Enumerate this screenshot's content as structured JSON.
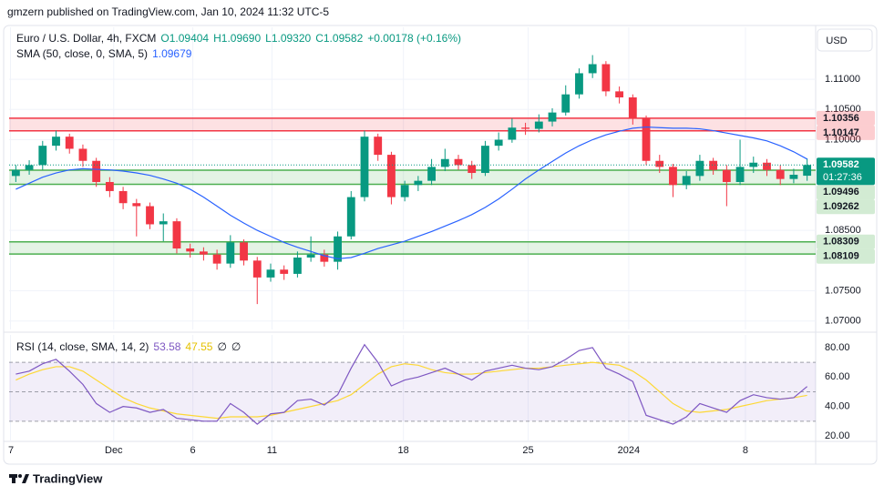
{
  "header": {
    "text": "gmzern published on TradingView.com, Jan 10, 2024 11:32 UTC-5"
  },
  "footer": {
    "brand": "TradingView"
  },
  "chart_data": [
    {
      "type": "candlestick",
      "title": "Euro / U.S. Dollar, 4h, FXCM",
      "ohlc_text": [
        "O1.09404",
        "H1.09690",
        "L1.09320",
        "C1.09582"
      ],
      "change_text": "+0.00178 (+0.16%)",
      "currency": "USD",
      "up_color": "#089981",
      "down_color": "#f23645",
      "xlim": [
        -0.5,
        59.5
      ],
      "ylim": [
        1.0686,
        1.1186
      ],
      "yticks": [
        {
          "value": 1.11,
          "label": "1.11000"
        },
        {
          "value": 1.105,
          "label": "1.10500"
        },
        {
          "value": 1.1,
          "label": "1.10000"
        },
        {
          "value": 1.085,
          "label": "1.08500"
        },
        {
          "value": 1.075,
          "label": "1.07500"
        },
        {
          "value": 1.07,
          "label": "1.07000"
        }
      ],
      "grid": true,
      "open": [
        1.094,
        1.095,
        1.0958,
        1.099,
        1.1005,
        1.0985,
        1.0965,
        1.093,
        1.0915,
        1.0895,
        1.089,
        1.086,
        1.0865,
        1.082,
        1.0815,
        1.081,
        1.0795,
        1.083,
        1.08,
        1.0772,
        1.0785,
        1.0778,
        1.0805,
        1.081,
        1.0798,
        1.084,
        1.0905,
        1.1005,
        1.0975,
        1.0905,
        1.0925,
        1.0932,
        1.0955,
        1.0968,
        1.0958,
        1.0945,
        1.099,
        1.1,
        1.102,
        1.1018,
        1.103,
        1.1045,
        1.1075,
        1.111,
        1.1125,
        1.108,
        1.107,
        1.1035,
        1.0965,
        1.0955,
        1.0925,
        1.094,
        1.0965,
        1.095,
        1.093,
        1.0955,
        1.0962,
        1.095,
        1.0935,
        1.09404
      ],
      "high": [
        1.0958,
        1.0966,
        1.0998,
        1.1015,
        1.101,
        1.0992,
        1.097,
        1.0938,
        1.0922,
        1.0902,
        1.0896,
        1.0878,
        1.087,
        1.0828,
        1.0822,
        1.0818,
        1.0842,
        1.0835,
        1.0806,
        1.0795,
        1.0792,
        1.0815,
        1.084,
        1.0818,
        1.0848,
        1.0915,
        1.1015,
        1.101,
        1.098,
        1.0932,
        1.094,
        1.0968,
        1.0985,
        1.0975,
        1.0965,
        1.0998,
        1.1012,
        1.1035,
        1.1028,
        1.1042,
        1.1052,
        1.109,
        1.1118,
        1.114,
        1.113,
        1.1088,
        1.1075,
        1.104,
        1.0975,
        1.096,
        1.0948,
        1.0975,
        1.097,
        1.0958,
        1.1,
        1.0972,
        1.0968,
        1.0958,
        1.0952,
        1.0969
      ],
      "low": [
        1.093,
        1.0942,
        1.095,
        1.0982,
        1.0977,
        1.0955,
        1.0922,
        1.0905,
        1.0885,
        1.084,
        1.0852,
        1.0832,
        1.0812,
        1.0805,
        1.08,
        1.0785,
        1.0788,
        1.0792,
        1.0728,
        1.0765,
        1.0768,
        1.0772,
        1.0798,
        1.079,
        1.0785,
        1.0835,
        1.0898,
        1.0965,
        1.0893,
        1.0898,
        1.0915,
        1.0925,
        1.0948,
        1.095,
        1.0935,
        1.094,
        1.0982,
        1.0995,
        1.1008,
        1.1012,
        1.1022,
        1.104,
        1.1068,
        1.1102,
        1.1072,
        1.106,
        1.1025,
        1.0958,
        1.0945,
        1.0905,
        1.0918,
        1.0932,
        1.0942,
        1.089,
        1.0925,
        1.0945,
        1.094,
        1.0925,
        1.0928,
        1.0932
      ],
      "close": [
        1.095,
        1.0958,
        1.099,
        1.1005,
        1.0985,
        1.0965,
        1.093,
        1.0915,
        1.0895,
        1.089,
        1.086,
        1.0865,
        1.082,
        1.0815,
        1.081,
        1.0795,
        1.083,
        1.08,
        1.0772,
        1.0785,
        1.0778,
        1.0805,
        1.081,
        1.0798,
        1.084,
        1.0905,
        1.1005,
        1.0975,
        1.0905,
        1.0925,
        1.0932,
        1.0955,
        1.0968,
        1.0958,
        1.0945,
        1.099,
        1.1,
        1.102,
        1.1018,
        1.103,
        1.1045,
        1.1075,
        1.111,
        1.1125,
        1.108,
        1.107,
        1.1035,
        1.0965,
        1.0955,
        1.0925,
        1.094,
        1.0965,
        1.095,
        1.093,
        1.0955,
        1.0962,
        1.095,
        1.0935,
        1.0942,
        1.09582
      ],
      "overlays": [
        {
          "name": "SMA (50, close, 0, SMA, 5)",
          "color": "#2962ff",
          "values": [
            1.0918,
            1.0928,
            1.0938,
            1.0945,
            1.095,
            1.0952,
            1.0951,
            1.095,
            1.0948,
            1.0945,
            1.0941,
            1.0935,
            1.0928,
            1.0918,
            1.0905,
            1.089,
            1.0875,
            1.0862,
            1.085,
            1.084,
            1.083,
            1.0822,
            1.0815,
            1.0808,
            1.0803,
            1.0805,
            1.0812,
            1.082,
            1.0826,
            1.0832,
            1.084,
            1.0848,
            1.0857,
            1.0866,
            1.0876,
            1.0888,
            1.0902,
            1.0918,
            1.0935,
            1.095,
            1.0964,
            1.0978,
            1.099,
            1.1,
            1.1008,
            1.1014,
            1.1019,
            1.1021,
            1.102,
            1.1019,
            1.1019,
            1.1018,
            1.1015,
            1.1011,
            1.1007,
            1.1003,
            1.0998,
            1.099,
            1.098,
            1.09679
          ]
        }
      ],
      "zones": [
        {
          "from": 1.10356,
          "to": 1.10147,
          "color": "#f23645"
        },
        {
          "from": 1.09496,
          "to": 1.09262,
          "color": "#4caf50"
        },
        {
          "from": 1.08309,
          "to": 1.08109,
          "color": "#4caf50"
        }
      ],
      "last": 1.09582,
      "countdown": "01:27:36"
    },
    {
      "type": "line",
      "title": "RSI (14, close, SMA, 14, 2)",
      "extra_labels": [
        "∅",
        "∅"
      ],
      "xlim": [
        -0.5,
        59.5
      ],
      "ylim": [
        16.3,
        88.6
      ],
      "yticks": [
        {
          "value": 80,
          "label": "80.00"
        },
        {
          "value": 60,
          "label": "60.00"
        },
        {
          "value": 40,
          "label": "40.00"
        },
        {
          "value": 20,
          "label": "20.00"
        }
      ],
      "xticks": [
        {
          "value": -0.4,
          "label": "7"
        },
        {
          "value": 7.3,
          "label": "Dec"
        },
        {
          "value": 13.2,
          "label": "6"
        },
        {
          "value": 19.1,
          "label": "11"
        },
        {
          "value": 28.9,
          "label": "18"
        },
        {
          "value": 38.2,
          "label": "25"
        },
        {
          "value": 45.7,
          "label": "2024"
        },
        {
          "value": 54.4,
          "label": "8"
        }
      ],
      "levels": [
        70,
        50,
        30
      ],
      "band_color": "#7e57c2",
      "series": [
        {
          "color": "#7e57c2",
          "values": [
            62,
            64,
            69,
            72,
            64,
            55,
            42,
            36,
            40,
            39,
            36,
            38,
            32,
            31,
            30,
            30,
            42,
            36,
            28,
            35,
            36,
            44,
            45,
            41,
            48,
            66,
            82,
            70,
            54,
            58,
            60,
            63,
            66,
            62,
            58,
            64,
            66,
            68,
            66,
            65,
            67,
            72,
            78,
            80,
            66,
            62,
            57,
            34,
            31,
            28,
            33,
            42,
            39,
            36,
            44,
            48,
            46,
            45,
            46,
            53.58
          ]
        },
        {
          "color": "#fdd835",
          "values": [
            58,
            62,
            65,
            67,
            67,
            64,
            58,
            52,
            46,
            42,
            39,
            37,
            35,
            34,
            33,
            32,
            33,
            33,
            33,
            34,
            36,
            38,
            40,
            42,
            44,
            48,
            55,
            62,
            67,
            69,
            68,
            65,
            63,
            62,
            62,
            63,
            64,
            65,
            66,
            66,
            67,
            68,
            69,
            70,
            69,
            68,
            64,
            58,
            50,
            42,
            37,
            36,
            37,
            38,
            40,
            42,
            44,
            45,
            46,
            47.55
          ]
        }
      ]
    }
  ]
}
